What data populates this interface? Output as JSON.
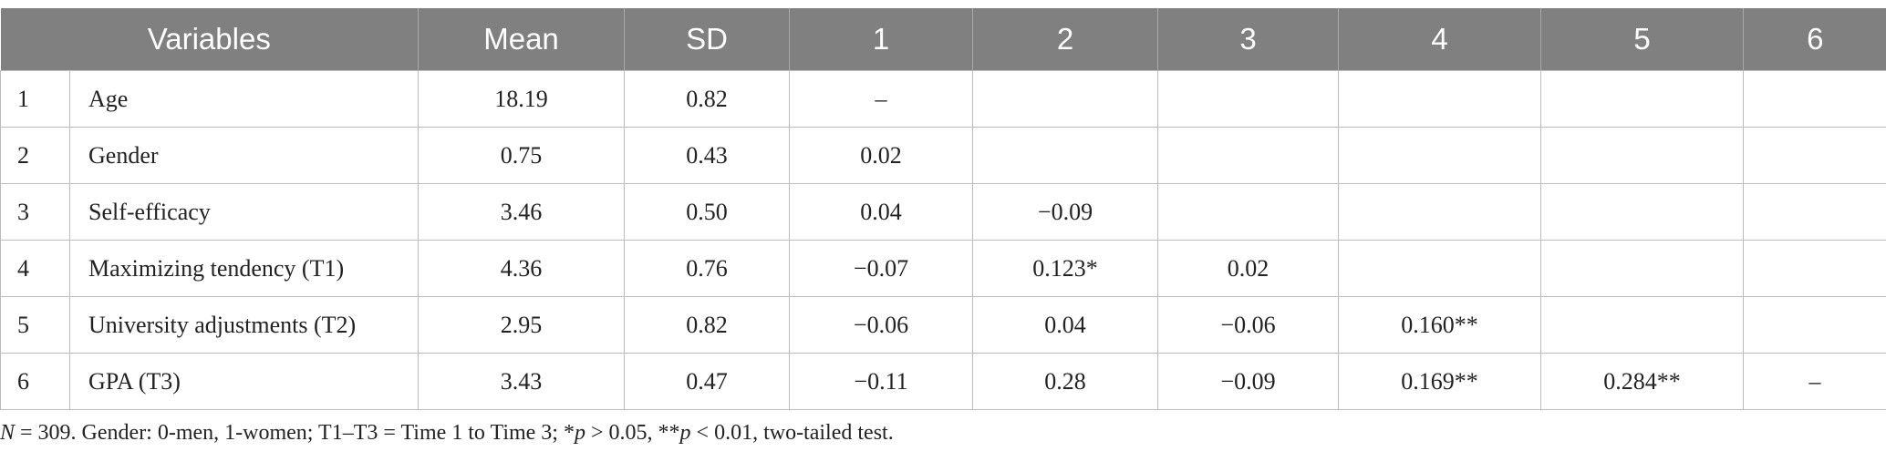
{
  "table": {
    "header": [
      "Variables",
      "Mean",
      "SD",
      "1",
      "2",
      "3",
      "4",
      "5",
      "6"
    ],
    "rows": [
      [
        "1",
        "Age",
        "18.19",
        "0.82",
        "–"
      ],
      [
        "2",
        "Gender",
        "0.75",
        "0.43",
        "0.02"
      ],
      [
        "3",
        "Self-efficacy",
        "3.46",
        "0.50",
        "0.04",
        "−0.09"
      ],
      [
        "4",
        "Maximizing tendency (T1)",
        "4.36",
        "0.76",
        "−0.07",
        "0.123*",
        "0.02"
      ],
      [
        "5",
        "University adjustments (T2)",
        "2.95",
        "0.82",
        "−0.06",
        "0.04",
        "−0.06",
        "0.160**"
      ],
      [
        "6",
        "GPA (T3)",
        "3.43",
        "0.47",
        "−0.11",
        "0.28",
        "−0.09",
        "0.169**",
        "0.284**",
        "–"
      ]
    ]
  },
  "footnote": [
    "N",
    " = 309. Gender: 0-men, 1-women; T1–T3 = Time 1 to Time 3; *",
    "p",
    " > 0.05, **",
    "p",
    " < 0.01, two-tailed test."
  ]
}
